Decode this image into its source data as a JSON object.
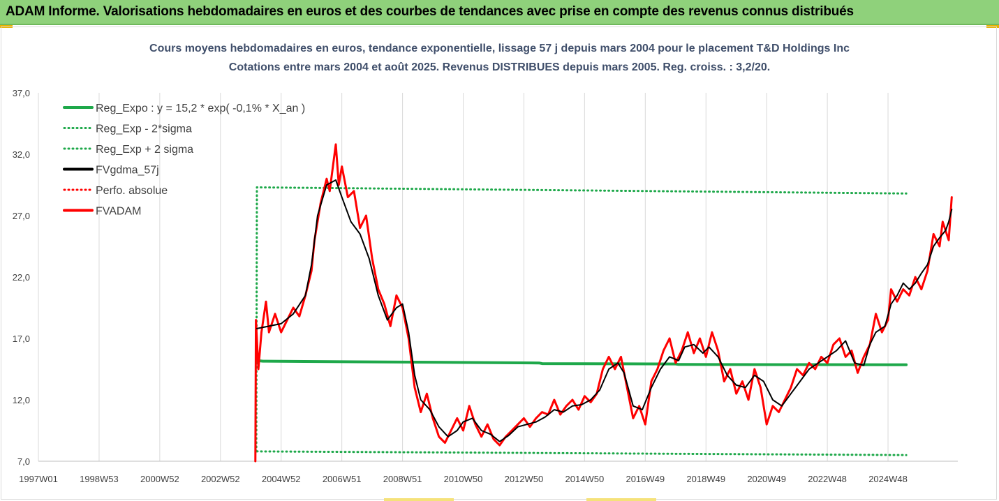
{
  "banner": {
    "title": "ADAM Informe. Valorisations hebdomadaires en euros et des courbes de tendances avec prise en compte des revenus connus distribués"
  },
  "chart_data": {
    "type": "line",
    "title": "Cours moyens hebdomadaires en euros, tendance exponentielle, lissage 57 j depuis mars 2004 pour le placement T&D Holdings Inc",
    "subtitle": "Cotations entre mars 2004 et août 2025. Revenus DISTRIBUES depuis mars 2005. Reg. croiss. : 3,2/20.",
    "xlabel": "",
    "ylabel": "",
    "x_range": [
      1997.0,
      2025.7
    ],
    "ylim": [
      7.0,
      37.0
    ],
    "y_ticks": [
      "7,0",
      "12,0",
      "17,0",
      "22,0",
      "27,0",
      "32,0",
      "37,0"
    ],
    "x_ticks": [
      {
        "label": "1997W01",
        "x": 1997.0
      },
      {
        "label": "1998W53",
        "x": 1999.0
      },
      {
        "label": "2000W52",
        "x": 2001.0
      },
      {
        "label": "2002W52",
        "x": 2003.0
      },
      {
        "label": "2004W52",
        "x": 2005.0
      },
      {
        "label": "2006W51",
        "x": 2007.0
      },
      {
        "label": "2008W51",
        "x": 2009.0
      },
      {
        "label": "2010W50",
        "x": 2011.0
      },
      {
        "label": "2012W50",
        "x": 2013.0
      },
      {
        "label": "2014W50",
        "x": 2015.0
      },
      {
        "label": "2016W49",
        "x": 2017.0
      },
      {
        "label": "2018W49",
        "x": 2019.0
      },
      {
        "label": "2020W49",
        "x": 2021.0
      },
      {
        "label": "2022W48",
        "x": 2023.0
      },
      {
        "label": "2024W48",
        "x": 2025.0
      }
    ],
    "grid": "vertical",
    "legend_position": "top-left",
    "series": [
      {
        "name": "Reg_Expo : y = 15,2 * exp( -0,1% * X_an )",
        "color": "#1ea84a",
        "style": "solid",
        "points": [
          [
            2004.2,
            15.2
          ],
          [
            2004.4,
            15.15
          ],
          [
            2013.5,
            15.0
          ],
          [
            2013.6,
            14.95
          ],
          [
            2018.0,
            14.92
          ],
          [
            2018.1,
            14.88
          ],
          [
            2025.6,
            14.85
          ]
        ]
      },
      {
        "name": "Reg_Exp - 2*sigma",
        "color": "#1ea84a",
        "style": "dotted",
        "points": [
          [
            2004.2,
            7.8
          ],
          [
            2025.6,
            7.5
          ]
        ]
      },
      {
        "name": "Reg_Exp + 2 sigma",
        "color": "#1ea84a",
        "style": "dotted",
        "points": [
          [
            2004.18,
            7.8
          ],
          [
            2004.2,
            29.3
          ],
          [
            2025.6,
            28.8
          ]
        ]
      },
      {
        "name": "FVgdma_57j",
        "color": "#000000",
        "style": "solid",
        "points": [
          [
            2004.2,
            17.8
          ],
          [
            2004.6,
            18.0
          ],
          [
            2005.0,
            18.2
          ],
          [
            2005.4,
            19.0
          ],
          [
            2005.8,
            20.5
          ],
          [
            2006.0,
            23.0
          ],
          [
            2006.2,
            27.0
          ],
          [
            2006.5,
            29.5
          ],
          [
            2006.8,
            29.9
          ],
          [
            2007.0,
            28.5
          ],
          [
            2007.3,
            26.5
          ],
          [
            2007.6,
            25.5
          ],
          [
            2007.9,
            23.5
          ],
          [
            2008.2,
            20.5
          ],
          [
            2008.5,
            18.5
          ],
          [
            2008.8,
            19.5
          ],
          [
            2009.0,
            19.8
          ],
          [
            2009.2,
            17.5
          ],
          [
            2009.4,
            14.0
          ],
          [
            2009.6,
            12.0
          ],
          [
            2009.9,
            11.2
          ],
          [
            2010.2,
            9.8
          ],
          [
            2010.5,
            9.0
          ],
          [
            2010.8,
            9.5
          ],
          [
            2011.0,
            10.2
          ],
          [
            2011.3,
            10.5
          ],
          [
            2011.6,
            9.5
          ],
          [
            2011.9,
            9.2
          ],
          [
            2012.2,
            8.6
          ],
          [
            2012.5,
            9.1
          ],
          [
            2012.8,
            9.8
          ],
          [
            2013.1,
            10.0
          ],
          [
            2013.4,
            10.2
          ],
          [
            2013.7,
            10.6
          ],
          [
            2014.0,
            11.2
          ],
          [
            2014.3,
            11.0
          ],
          [
            2014.6,
            11.5
          ],
          [
            2014.9,
            11.6
          ],
          [
            2015.2,
            12.0
          ],
          [
            2015.5,
            12.8
          ],
          [
            2015.8,
            14.5
          ],
          [
            2016.1,
            15.0
          ],
          [
            2016.3,
            14.2
          ],
          [
            2016.6,
            11.5
          ],
          [
            2016.9,
            11.2
          ],
          [
            2017.2,
            13.0
          ],
          [
            2017.5,
            14.5
          ],
          [
            2017.8,
            15.5
          ],
          [
            2018.1,
            15.2
          ],
          [
            2018.3,
            16.3
          ],
          [
            2018.6,
            16.5
          ],
          [
            2018.9,
            15.8
          ],
          [
            2019.1,
            16.3
          ],
          [
            2019.4,
            15.5
          ],
          [
            2019.7,
            14.0
          ],
          [
            2020.0,
            13.2
          ],
          [
            2020.3,
            13.0
          ],
          [
            2020.6,
            14.0
          ],
          [
            2020.9,
            13.5
          ],
          [
            2021.2,
            12.0
          ],
          [
            2021.5,
            11.5
          ],
          [
            2021.8,
            12.5
          ],
          [
            2022.1,
            13.5
          ],
          [
            2022.4,
            14.5
          ],
          [
            2022.7,
            15.0
          ],
          [
            2023.0,
            15.5
          ],
          [
            2023.3,
            16.0
          ],
          [
            2023.6,
            16.8
          ],
          [
            2023.9,
            15.0
          ],
          [
            2024.2,
            14.8
          ],
          [
            2024.4,
            16.5
          ],
          [
            2024.6,
            17.5
          ],
          [
            2024.9,
            18.0
          ],
          [
            2025.1,
            19.8
          ],
          [
            2025.3,
            20.5
          ],
          [
            2025.5,
            21.5
          ],
          [
            2025.7,
            21.0
          ],
          [
            2025.9,
            21.5
          ],
          [
            2026.1,
            22.3
          ],
          [
            2026.3,
            23.0
          ],
          [
            2026.5,
            24.5
          ],
          [
            2026.7,
            25.2
          ],
          [
            2026.9,
            25.8
          ],
          [
            2027.0,
            26.5
          ],
          [
            2027.1,
            27.5
          ]
        ]
      },
      {
        "name": "Perfo. absolue",
        "color": "#ff0000",
        "style": "dotted",
        "points": []
      },
      {
        "name": "FVADAM",
        "color": "#ff0000",
        "style": "solid",
        "points": [
          [
            2004.15,
            7.0
          ],
          [
            2004.17,
            18.5
          ],
          [
            2004.25,
            14.5
          ],
          [
            2004.35,
            17.5
          ],
          [
            2004.5,
            20.0
          ],
          [
            2004.6,
            17.5
          ],
          [
            2004.8,
            19.0
          ],
          [
            2005.0,
            17.5
          ],
          [
            2005.2,
            18.5
          ],
          [
            2005.4,
            19.5
          ],
          [
            2005.6,
            18.8
          ],
          [
            2005.8,
            20.5
          ],
          [
            2006.0,
            22.5
          ],
          [
            2006.1,
            25.0
          ],
          [
            2006.3,
            28.0
          ],
          [
            2006.5,
            30.0
          ],
          [
            2006.6,
            29.0
          ],
          [
            2006.8,
            32.8
          ],
          [
            2006.9,
            29.5
          ],
          [
            2007.0,
            31.0
          ],
          [
            2007.2,
            28.5
          ],
          [
            2007.4,
            29.0
          ],
          [
            2007.6,
            26.0
          ],
          [
            2007.8,
            27.0
          ],
          [
            2008.0,
            23.5
          ],
          [
            2008.2,
            21.0
          ],
          [
            2008.4,
            19.8
          ],
          [
            2008.6,
            18.0
          ],
          [
            2008.8,
            20.5
          ],
          [
            2009.0,
            19.5
          ],
          [
            2009.2,
            17.0
          ],
          [
            2009.4,
            13.0
          ],
          [
            2009.6,
            11.0
          ],
          [
            2009.8,
            12.5
          ],
          [
            2010.0,
            10.5
          ],
          [
            2010.2,
            9.0
          ],
          [
            2010.4,
            8.5
          ],
          [
            2010.6,
            9.5
          ],
          [
            2010.8,
            10.5
          ],
          [
            2011.0,
            9.5
          ],
          [
            2011.2,
            11.5
          ],
          [
            2011.4,
            10.0
          ],
          [
            2011.6,
            9.0
          ],
          [
            2011.8,
            10.0
          ],
          [
            2012.0,
            8.8
          ],
          [
            2012.2,
            8.3
          ],
          [
            2012.4,
            9.0
          ],
          [
            2012.6,
            9.5
          ],
          [
            2012.8,
            10.0
          ],
          [
            2013.0,
            10.5
          ],
          [
            2013.2,
            9.8
          ],
          [
            2013.4,
            10.5
          ],
          [
            2013.6,
            11.0
          ],
          [
            2013.8,
            10.8
          ],
          [
            2014.0,
            12.0
          ],
          [
            2014.2,
            10.8
          ],
          [
            2014.4,
            11.5
          ],
          [
            2014.6,
            12.0
          ],
          [
            2014.8,
            11.2
          ],
          [
            2015.0,
            12.3
          ],
          [
            2015.2,
            11.8
          ],
          [
            2015.4,
            12.5
          ],
          [
            2015.6,
            14.5
          ],
          [
            2015.8,
            15.5
          ],
          [
            2016.0,
            14.5
          ],
          [
            2016.2,
            15.5
          ],
          [
            2016.4,
            13.0
          ],
          [
            2016.6,
            10.5
          ],
          [
            2016.8,
            11.5
          ],
          [
            2017.0,
            10.0
          ],
          [
            2017.2,
            13.5
          ],
          [
            2017.4,
            14.5
          ],
          [
            2017.6,
            16.0
          ],
          [
            2017.8,
            17.0
          ],
          [
            2018.0,
            15.0
          ],
          [
            2018.2,
            16.0
          ],
          [
            2018.4,
            17.5
          ],
          [
            2018.6,
            15.8
          ],
          [
            2018.8,
            17.0
          ],
          [
            2019.0,
            15.5
          ],
          [
            2019.2,
            17.5
          ],
          [
            2019.4,
            16.0
          ],
          [
            2019.6,
            13.5
          ],
          [
            2019.8,
            14.5
          ],
          [
            2020.0,
            12.5
          ],
          [
            2020.2,
            13.5
          ],
          [
            2020.4,
            12.0
          ],
          [
            2020.6,
            14.5
          ],
          [
            2020.8,
            13.0
          ],
          [
            2021.0,
            10.0
          ],
          [
            2021.2,
            11.5
          ],
          [
            2021.4,
            11.0
          ],
          [
            2021.6,
            12.0
          ],
          [
            2021.8,
            13.0
          ],
          [
            2022.0,
            14.5
          ],
          [
            2022.2,
            14.0
          ],
          [
            2022.4,
            15.0
          ],
          [
            2022.6,
            14.5
          ],
          [
            2022.8,
            15.5
          ],
          [
            2023.0,
            15.0
          ],
          [
            2023.2,
            16.5
          ],
          [
            2023.4,
            17.0
          ],
          [
            2023.6,
            15.5
          ],
          [
            2023.8,
            16.0
          ],
          [
            2024.0,
            14.2
          ],
          [
            2024.2,
            15.5
          ],
          [
            2024.4,
            16.5
          ],
          [
            2024.6,
            19.0
          ],
          [
            2024.8,
            17.5
          ],
          [
            2025.0,
            18.5
          ],
          [
            2025.1,
            21.0
          ],
          [
            2025.3,
            20.0
          ],
          [
            2025.5,
            21.0
          ],
          [
            2025.7,
            20.5
          ],
          [
            2025.9,
            22.0
          ],
          [
            2026.1,
            21.0
          ],
          [
            2026.3,
            22.5
          ],
          [
            2026.5,
            25.5
          ],
          [
            2026.7,
            24.5
          ],
          [
            2026.8,
            26.5
          ],
          [
            2027.0,
            25.0
          ],
          [
            2027.1,
            28.5
          ]
        ]
      }
    ]
  }
}
